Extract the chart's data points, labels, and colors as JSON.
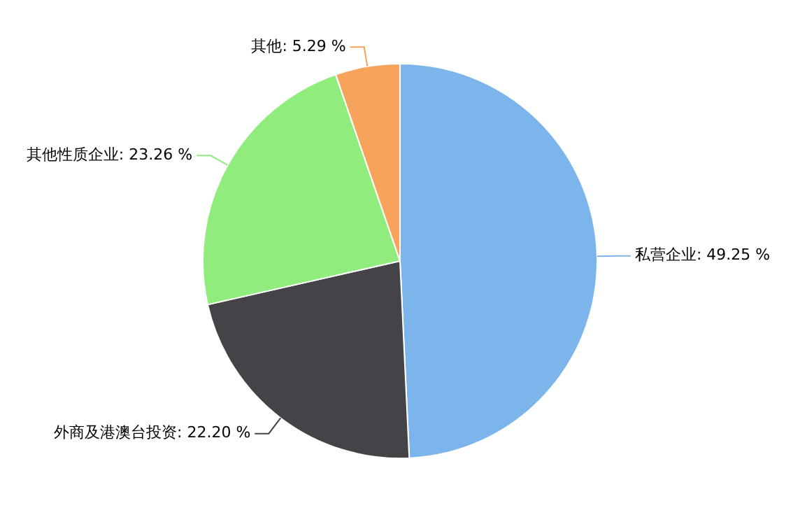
{
  "chart_data": {
    "type": "pie",
    "categories": [
      "私营企业",
      "外商及港澳台投资",
      "其他性质企业",
      "其他"
    ],
    "values": [
      49.25,
      22.2,
      23.26,
      5.29
    ],
    "value_labels": [
      "49.25 %",
      "22.20 %",
      "23.26 %",
      "5.29 %"
    ],
    "colors": [
      "#7cb5ec",
      "#434348",
      "#90ed7d",
      "#f7a35c"
    ],
    "legend": false
  }
}
